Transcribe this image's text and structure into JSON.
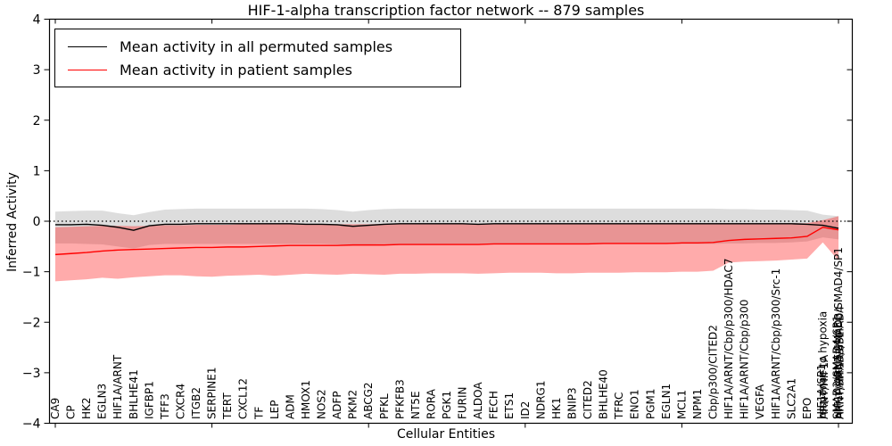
{
  "title": "HIF-1-alpha transcription factor network -- 879 samples",
  "axes": {
    "xlabel": "Cellular Entities",
    "ylabel": "Inferred Activity",
    "ylim": [
      -4,
      4
    ],
    "ytick_labels": [
      "4",
      "3",
      "2",
      "1",
      "0",
      "−1",
      "−2",
      "−3",
      "−4"
    ],
    "ytick_values": [
      4,
      3,
      2,
      1,
      0,
      -1,
      -2,
      -3,
      -4
    ],
    "grid": false
  },
  "legend": {
    "position": "upper-left",
    "entries": [
      {
        "label": "Mean activity in all permuted samples",
        "color": "#000000"
      },
      {
        "label": "Mean activity in patient samples",
        "color": "#ff0000"
      }
    ]
  },
  "colors": {
    "permuted_line": "#000000",
    "patient_line": "#ff0000",
    "permuted_band": "#808080",
    "patient_band": "#ff0000",
    "zero_line": "#000000",
    "frame": "#000000"
  },
  "chart_data": {
    "type": "line",
    "title": "HIF-1-alpha transcription factor network -- 879 samples",
    "xlabel": "Cellular Entities",
    "ylabel": "Inferred Activity",
    "ylim": [
      -4,
      4
    ],
    "zero_reference_line": true,
    "legend_position": "upper-left",
    "categories": [
      "CA9",
      "CP",
      "HK2",
      "EGLN3",
      "HIF1A/ARNT",
      "BHLHE41",
      "IGFBP1",
      "TFF3",
      "CXCR4",
      "ITGB2",
      "SERPINE1",
      "TERT",
      "CXCL12",
      "TF",
      "LEP",
      "ADM",
      "HMOX1",
      "NOS2",
      "ADFP",
      "PKM2",
      "ABCG2",
      "PFKL",
      "PFKFB3",
      "NT5E",
      "RORA",
      "PGK1",
      "FURIN",
      "ALDOA",
      "FECH",
      "ETS1",
      "ID2",
      "NDRG1",
      "HK1",
      "BNIP3",
      "CITED2",
      "BHLHE40",
      "TFRC",
      "ENO1",
      "PGM1",
      "EGLN1",
      "MCL1",
      "NPM1",
      "Cbp/p300/CITED2",
      "HIF1A/ARNT/Cbp/p300/HDAC7",
      "HIF1A/ARNT/Cbp/p300",
      "VEGFA",
      "HIF1A/ARNT/Cbp/p300/Src-1",
      "SLC2A1",
      "EPO",
      "response to hypoxia",
      "HIF1A/ARNT/SMAD3/SMAD4/SP1"
    ],
    "overlapped_label_clusters": [
      {
        "index": 49,
        "labels": [
          "ARNT/HIF1A",
          "HIF1A/SP1"
        ]
      },
      {
        "index": 50,
        "labels": [
          "ARNT/SMAD3/SMAD4",
          "SMAD3/SMAD4/SP1",
          "ARNT/HIF1A/SP1"
        ]
      }
    ],
    "series": [
      {
        "name": "Mean activity in all permuted samples",
        "color": "#000000",
        "values": [
          -0.07,
          -0.07,
          -0.06,
          -0.08,
          -0.12,
          -0.18,
          -0.09,
          -0.06,
          -0.06,
          -0.05,
          -0.05,
          -0.05,
          -0.05,
          -0.05,
          -0.05,
          -0.05,
          -0.06,
          -0.06,
          -0.07,
          -0.1,
          -0.08,
          -0.06,
          -0.05,
          -0.05,
          -0.05,
          -0.05,
          -0.05,
          -0.06,
          -0.05,
          -0.05,
          -0.05,
          -0.05,
          -0.05,
          -0.05,
          -0.05,
          -0.05,
          -0.05,
          -0.05,
          -0.05,
          -0.05,
          -0.05,
          -0.05,
          -0.05,
          -0.05,
          -0.05,
          -0.05,
          -0.05,
          -0.05,
          -0.06,
          -0.08,
          -0.14
        ]
      },
      {
        "name": "Mean activity in patient samples",
        "color": "#ff0000",
        "values": [
          -0.66,
          -0.64,
          -0.62,
          -0.59,
          -0.57,
          -0.56,
          -0.55,
          -0.54,
          -0.53,
          -0.52,
          -0.52,
          -0.51,
          -0.51,
          -0.5,
          -0.49,
          -0.48,
          -0.48,
          -0.48,
          -0.48,
          -0.47,
          -0.47,
          -0.47,
          -0.46,
          -0.46,
          -0.46,
          -0.46,
          -0.46,
          -0.46,
          -0.45,
          -0.45,
          -0.45,
          -0.45,
          -0.45,
          -0.45,
          -0.45,
          -0.44,
          -0.44,
          -0.44,
          -0.44,
          -0.44,
          -0.43,
          -0.43,
          -0.42,
          -0.38,
          -0.36,
          -0.35,
          -0.34,
          -0.33,
          -0.3,
          -0.12,
          -0.17
        ]
      }
    ],
    "bands": [
      {
        "name": "permuted-std-band",
        "color": "#808080",
        "opacity": 0.27,
        "top": [
          0.19,
          0.2,
          0.21,
          0.21,
          0.16,
          0.12,
          0.18,
          0.23,
          0.24,
          0.25,
          0.25,
          0.25,
          0.25,
          0.25,
          0.25,
          0.25,
          0.25,
          0.24,
          0.22,
          0.19,
          0.22,
          0.24,
          0.25,
          0.25,
          0.25,
          0.25,
          0.25,
          0.25,
          0.25,
          0.25,
          0.25,
          0.25,
          0.25,
          0.25,
          0.25,
          0.25,
          0.25,
          0.25,
          0.25,
          0.25,
          0.25,
          0.25,
          0.25,
          0.24,
          0.24,
          0.23,
          0.23,
          0.22,
          0.21,
          0.13,
          0.1
        ],
        "bottom": [
          -0.44,
          -0.44,
          -0.45,
          -0.46,
          -0.5,
          -0.54,
          -0.47,
          -0.45,
          -0.45,
          -0.45,
          -0.45,
          -0.45,
          -0.45,
          -0.45,
          -0.45,
          -0.45,
          -0.45,
          -0.45,
          -0.46,
          -0.48,
          -0.46,
          -0.45,
          -0.45,
          -0.45,
          -0.45,
          -0.45,
          -0.45,
          -0.45,
          -0.45,
          -0.45,
          -0.45,
          -0.45,
          -0.45,
          -0.45,
          -0.45,
          -0.45,
          -0.45,
          -0.45,
          -0.45,
          -0.45,
          -0.45,
          -0.45,
          -0.45,
          -0.44,
          -0.44,
          -0.43,
          -0.43,
          -0.42,
          -0.4,
          -0.32,
          -0.36
        ]
      },
      {
        "name": "patient-std-band",
        "color": "#ff0000",
        "opacity": 0.33,
        "top": [
          -0.12,
          -0.11,
          -0.1,
          -0.09,
          -0.09,
          -0.1,
          -0.09,
          -0.08,
          -0.08,
          -0.07,
          -0.07,
          -0.07,
          -0.06,
          -0.06,
          -0.06,
          -0.06,
          -0.06,
          -0.06,
          -0.06,
          -0.06,
          -0.06,
          -0.05,
          -0.05,
          -0.05,
          -0.05,
          -0.05,
          -0.05,
          -0.05,
          -0.05,
          -0.05,
          -0.05,
          -0.05,
          -0.05,
          -0.05,
          -0.05,
          -0.05,
          -0.05,
          -0.04,
          -0.04,
          -0.04,
          -0.04,
          -0.04,
          -0.04,
          -0.04,
          -0.04,
          -0.04,
          -0.04,
          -0.04,
          -0.04,
          0.02,
          0.1
        ],
        "bottom": [
          -1.19,
          -1.17,
          -1.15,
          -1.12,
          -1.14,
          -1.11,
          -1.09,
          -1.07,
          -1.07,
          -1.09,
          -1.1,
          -1.08,
          -1.07,
          -1.06,
          -1.08,
          -1.06,
          -1.04,
          -1.05,
          -1.06,
          -1.04,
          -1.05,
          -1.06,
          -1.04,
          -1.04,
          -1.03,
          -1.03,
          -1.03,
          -1.04,
          -1.03,
          -1.02,
          -1.02,
          -1.02,
          -1.03,
          -1.03,
          -1.02,
          -1.02,
          -1.02,
          -1.01,
          -1.01,
          -1.01,
          -1.0,
          -1.0,
          -0.98,
          -0.82,
          -0.8,
          -0.79,
          -0.78,
          -0.76,
          -0.74,
          -0.42,
          -0.78
        ]
      }
    ]
  }
}
